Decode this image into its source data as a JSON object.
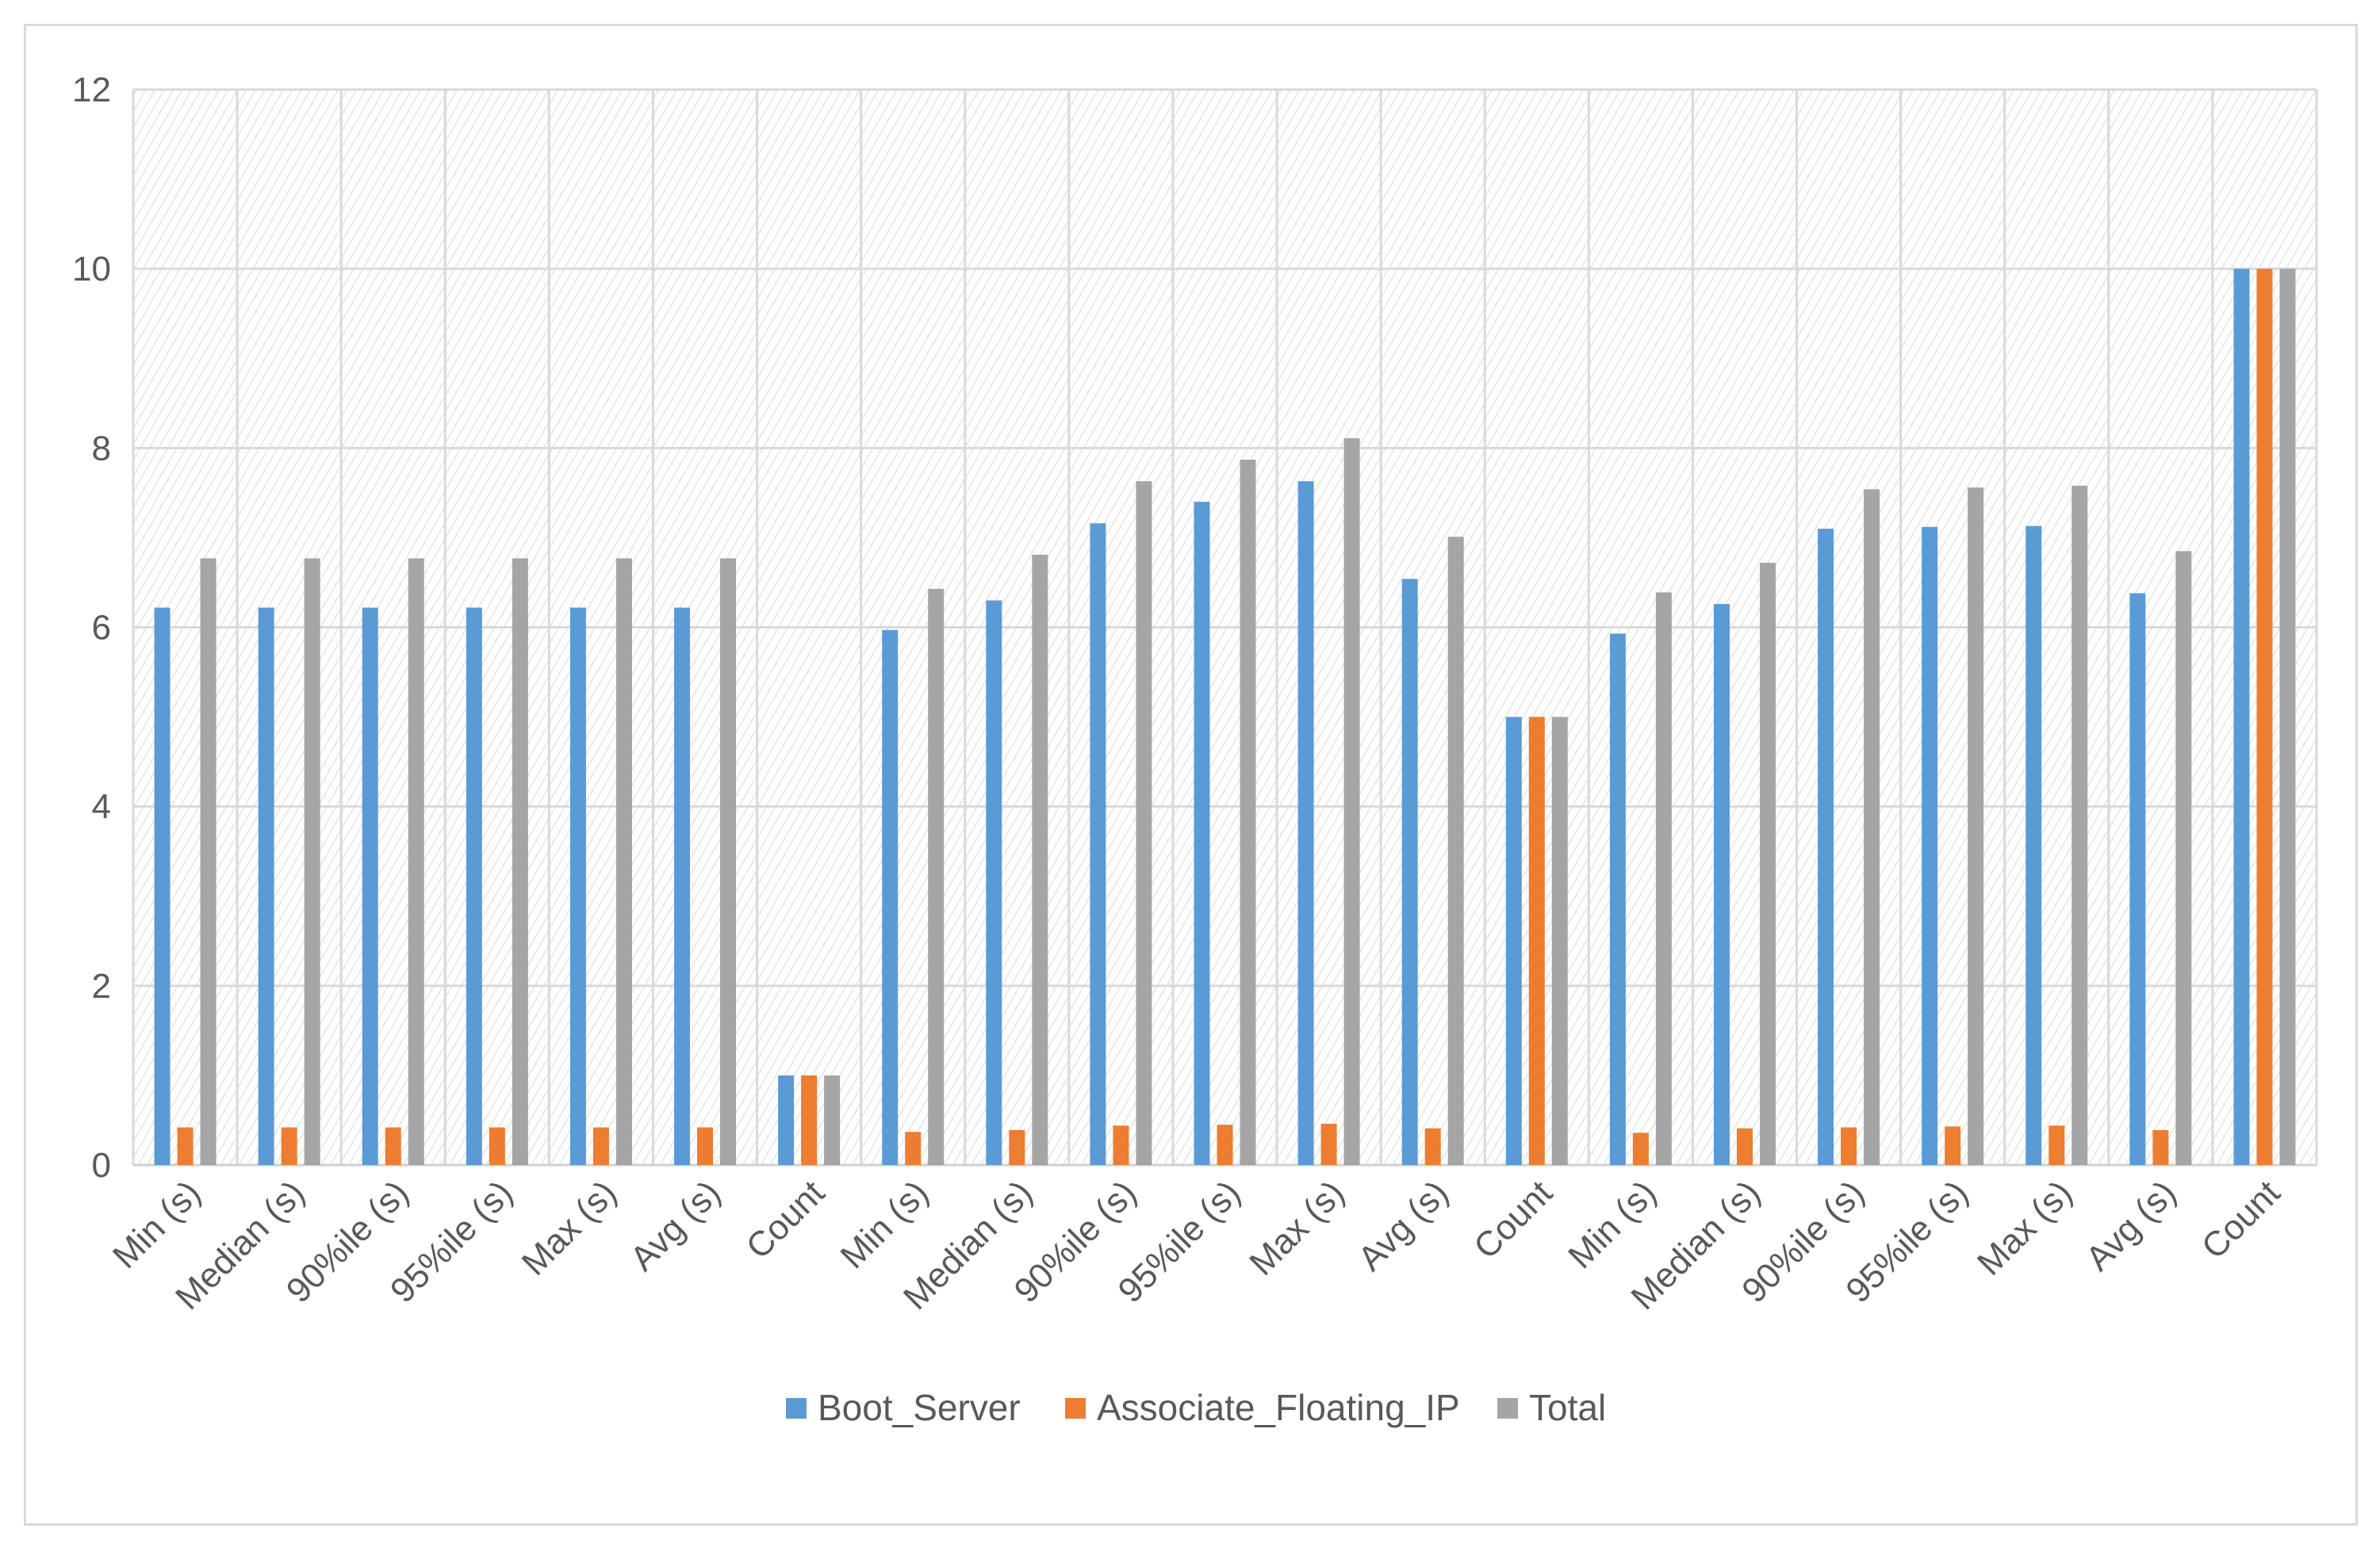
{
  "chart_data": {
    "type": "bar",
    "title": "",
    "xlabel": "",
    "ylabel": "",
    "ylim": [
      0,
      12
    ],
    "yticks": [
      0,
      2,
      4,
      6,
      8,
      10,
      12
    ],
    "grid": true,
    "legend_position": "bottom",
    "categories": [
      "Min (s)",
      "Median (s)",
      "90%ile (s)",
      "95%ile (s)",
      "Max (s)",
      "Avg (s)",
      "Count",
      "Min (s)",
      "Median (s)",
      "90%ile (s)",
      "95%ile (s)",
      "Max (s)",
      "Avg (s)",
      "Count",
      "Min (s)",
      "Median (s)",
      "90%ile (s)",
      "95%ile (s)",
      "Max (s)",
      "Avg (s)",
      "Count"
    ],
    "series": [
      {
        "name": "Boot_Server",
        "color": "#5b9bd5",
        "values": [
          6.22,
          6.22,
          6.22,
          6.22,
          6.22,
          6.22,
          1,
          5.97,
          6.3,
          7.16,
          7.4,
          7.63,
          6.54,
          5,
          5.93,
          6.26,
          7.1,
          7.12,
          7.13,
          6.38,
          10
        ]
      },
      {
        "name": "Associate_Floating_IP",
        "color": "#ed7d31",
        "values": [
          0.42,
          0.42,
          0.42,
          0.42,
          0.42,
          0.42,
          1,
          0.37,
          0.39,
          0.44,
          0.45,
          0.46,
          0.41,
          5,
          0.36,
          0.41,
          0.42,
          0.43,
          0.44,
          0.39,
          10
        ]
      },
      {
        "name": "Total",
        "color": "#a5a5a5",
        "values": [
          6.77,
          6.77,
          6.77,
          6.77,
          6.77,
          6.77,
          1,
          6.43,
          6.81,
          7.63,
          7.87,
          8.11,
          7.01,
          5,
          6.39,
          6.72,
          7.54,
          7.56,
          7.58,
          6.85,
          10
        ]
      }
    ]
  }
}
